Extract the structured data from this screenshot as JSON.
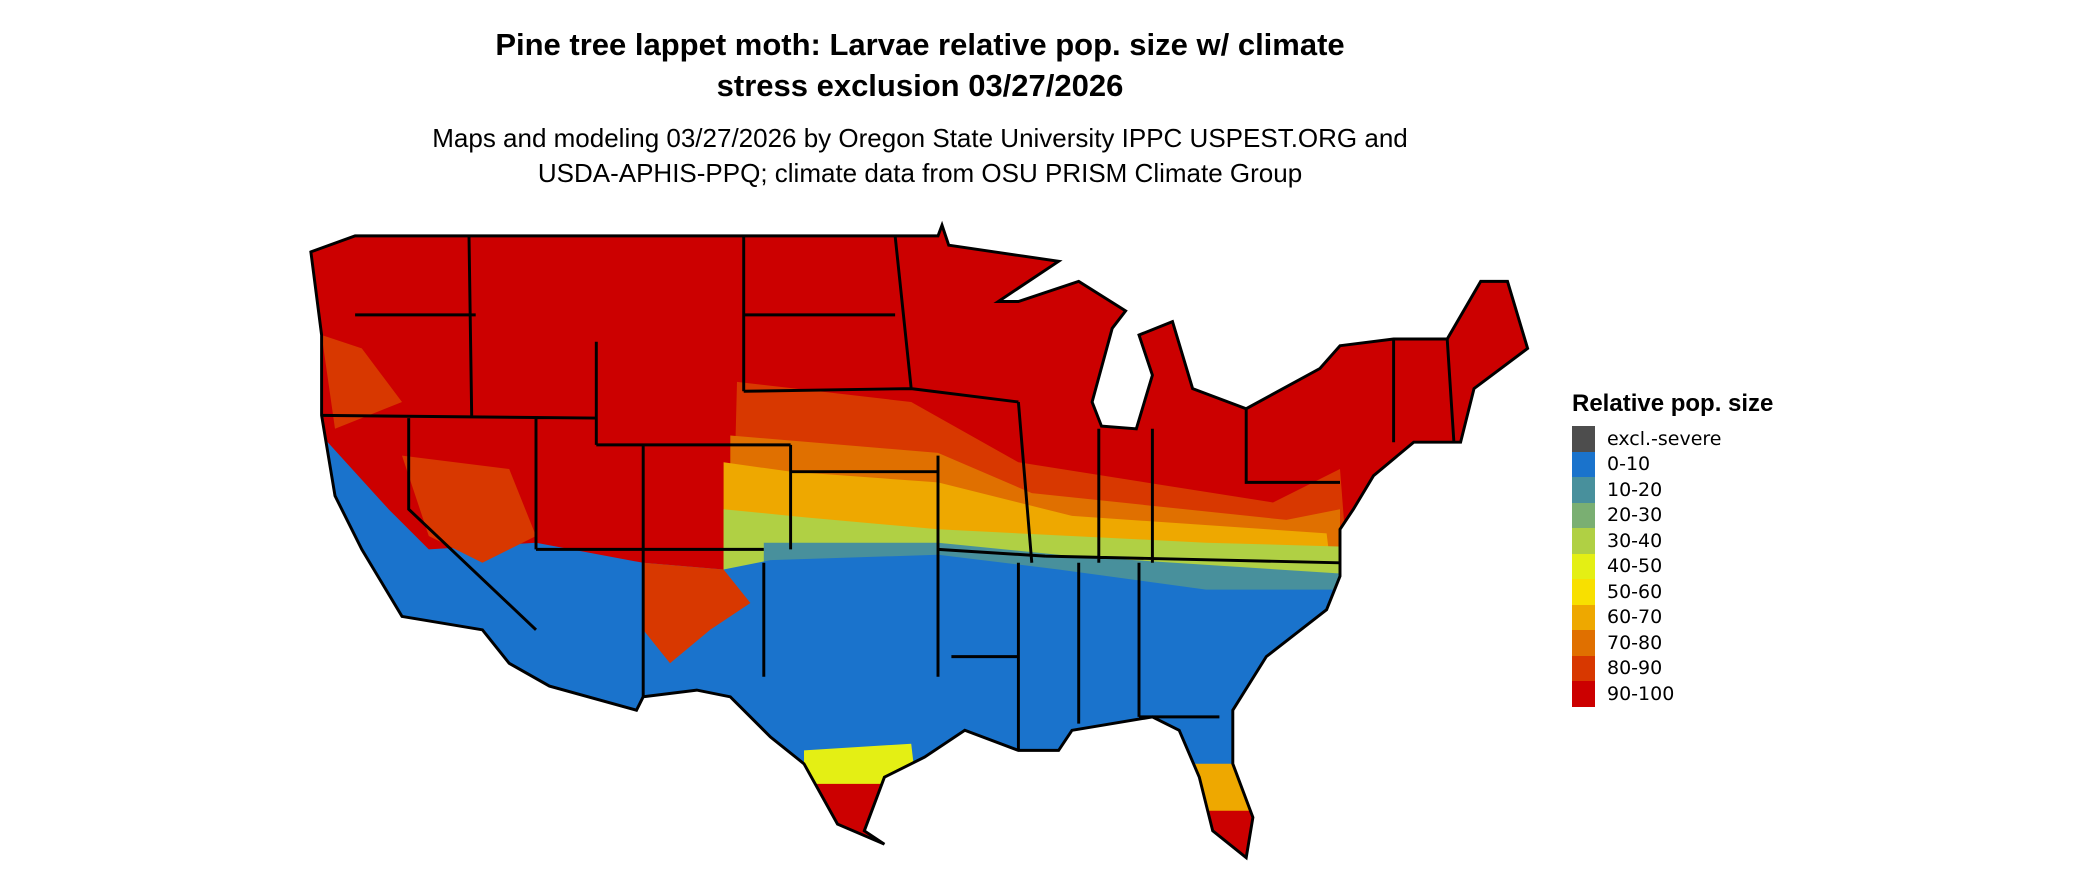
{
  "title": {
    "line1": "Pine tree lappet moth: Larvae relative pop. size w/ climate",
    "line2": "stress exclusion 03/27/2026"
  },
  "subtitle": {
    "line1": "Maps and modeling 03/27/2026 by Oregon State University IPPC USPEST.ORG and",
    "line2": "USDA-APHIS-PPQ; climate data from OSU PRISM Climate Group"
  },
  "legend": {
    "title": "Relative pop. size",
    "items": [
      {
        "label": "excl.-severe",
        "color": "#4d4d4d"
      },
      {
        "label": "0-10",
        "color": "#1a73cc"
      },
      {
        "label": "10-20",
        "color": "#48909c"
      },
      {
        "label": "20-30",
        "color": "#7aaf72"
      },
      {
        "label": "30-40",
        "color": "#b0d044"
      },
      {
        "label": "40-50",
        "color": "#e4ef14"
      },
      {
        "label": "50-60",
        "color": "#f8e000"
      },
      {
        "label": "60-70",
        "color": "#eea800"
      },
      {
        "label": "70-80",
        "color": "#e07000"
      },
      {
        "label": "80-90",
        "color": "#d83800"
      },
      {
        "label": "90-100",
        "color": "#cc0000"
      }
    ]
  },
  "map": {
    "region": "Contiguous United States",
    "dominant_north": "90-100",
    "dominant_south": "0-10"
  }
}
